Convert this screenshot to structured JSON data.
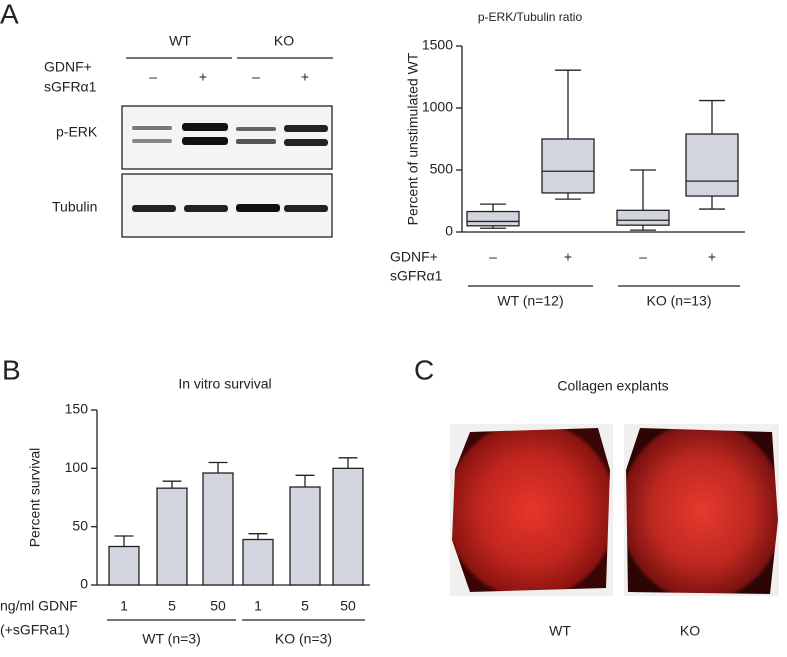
{
  "panels": {
    "a": "A",
    "b": "B",
    "c": "C"
  },
  "blot": {
    "groups": [
      "WT",
      "KO"
    ],
    "treatment": [
      "GDNF+",
      "sGFRα1"
    ],
    "lanes": [
      "–",
      "+",
      "–",
      "+"
    ],
    "rows": [
      "p-ERK",
      "Tubulin"
    ]
  },
  "chart_data": [
    {
      "type": "box",
      "title": "p-ERK/Tubulin ratio",
      "ylabel": "Percent of unstimulated WT",
      "categories": [
        "–",
        "+",
        "–",
        "+"
      ],
      "treatment": [
        "GDNF+",
        "sGFRα1"
      ],
      "groups": [
        "WT (n=12)",
        "KO (n=13)"
      ],
      "boxes": [
        {
          "low": 30,
          "q1": 50,
          "median": 85,
          "q3": 165,
          "high": 225
        },
        {
          "low": 265,
          "q1": 315,
          "median": 490,
          "q3": 750,
          "high": 1305
        },
        {
          "low": 15,
          "q1": 55,
          "median": 95,
          "q3": 175,
          "high": 500
        },
        {
          "low": 185,
          "q1": 290,
          "median": 410,
          "q3": 790,
          "high": 1060
        }
      ],
      "color": "#d3d5de",
      "ylim": [
        0,
        1500
      ],
      "yticks": [
        0,
        500,
        1000,
        1500
      ]
    },
    {
      "type": "bar",
      "title": "In vitro survival",
      "ylabel": "Percent survival",
      "categories": [
        "1",
        "5",
        "50",
        "1",
        "5",
        "50"
      ],
      "treatment": [
        "ng/ml GDNF",
        "(+sGFRa1)"
      ],
      "groups": [
        "WT (n=3)",
        "KO (n=3)"
      ],
      "values": [
        33,
        83,
        96,
        39,
        84,
        100
      ],
      "errors": [
        9,
        6,
        9,
        5,
        10,
        9
      ],
      "color": "#d3d5de",
      "ylim": [
        0,
        150
      ],
      "yticks": [
        0,
        50,
        100,
        150
      ]
    }
  ],
  "explants": {
    "title": "Collagen explants",
    "labels": [
      "WT",
      "KO"
    ]
  }
}
